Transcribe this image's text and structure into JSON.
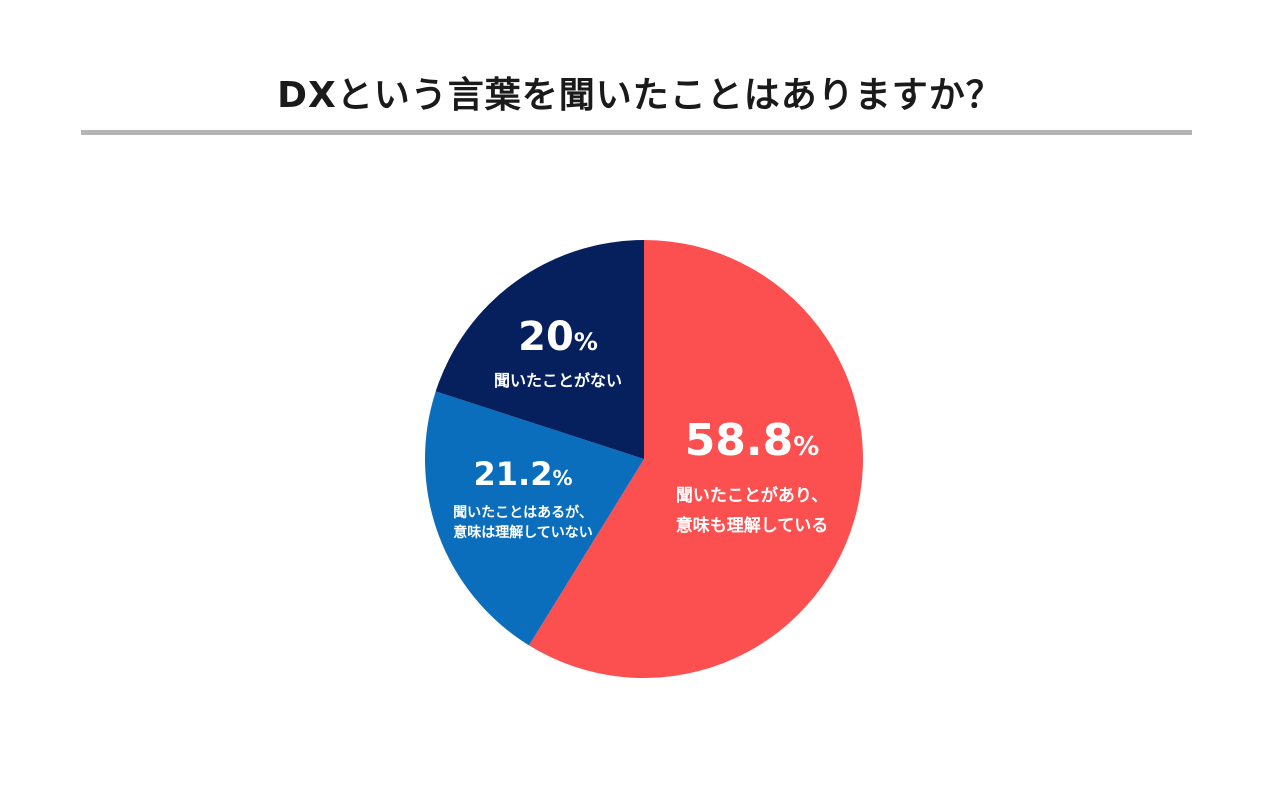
{
  "title": "DXという言葉を聞いたことはありますか？",
  "chart_data": {
    "type": "pie",
    "title": "DXという言葉を聞いたことはありますか？",
    "unit": "%",
    "slices": [
      {
        "value": 58.8,
        "value_label": "58.8",
        "label_lines": [
          "聞いたことがあり、",
          "意味も理解している"
        ],
        "color": "#fc5050"
      },
      {
        "value": 21.2,
        "value_label": "21.2",
        "label_lines": [
          "聞いたことはあるが、",
          "意味は理解していない"
        ],
        "color": "#0a6ebd"
      },
      {
        "value": 20,
        "value_label": "20",
        "label_lines": [
          "聞いたことがない"
        ],
        "color": "#05205c"
      }
    ]
  }
}
